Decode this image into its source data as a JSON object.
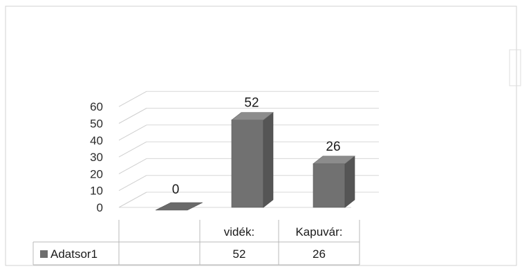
{
  "chart_data": {
    "type": "bar",
    "style": "3d-column-with-data-table",
    "categories": [
      "",
      "vidék:",
      "Kapuvár:"
    ],
    "series": [
      {
        "name": "Adatsor1",
        "values": [
          0,
          52,
          26
        ],
        "color": "#6e6e6e"
      }
    ],
    "data_labels": [
      "0",
      "52",
      "26"
    ],
    "data_table_values": [
      "",
      "52",
      "26"
    ],
    "ylim": [
      0,
      60
    ],
    "yticks": [
      "0",
      "10",
      "20",
      "30",
      "40",
      "50",
      "60"
    ],
    "grid": true,
    "legend": "data-table-left"
  }
}
